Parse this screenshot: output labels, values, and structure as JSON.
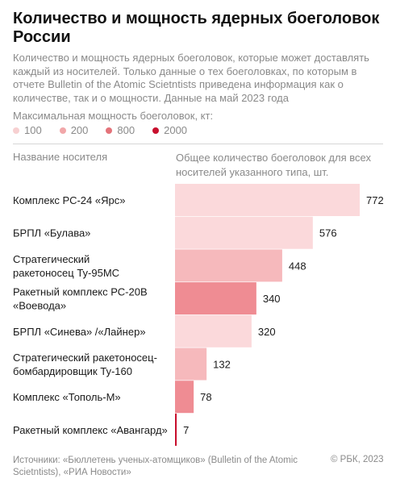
{
  "header": {
    "title": "Количество и мощность ядерных боеголовок России",
    "subtitle": "Количество и мощность ядерных боеголовок, которые может доставлять каждый из носителей. Только данные о тех боеголовках, по которым в отчете Bulletin of the Atomic Scietntists приведена информация как о количестве, так и о мощности. Данные на май 2023 года"
  },
  "legend": {
    "title": "Максимальная мощность боеголовок, кт:",
    "items": [
      {
        "label": "100",
        "color": "#f7d0d1"
      },
      {
        "label": "200",
        "color": "#f1a7a9"
      },
      {
        "label": "800",
        "color": "#e4737a"
      },
      {
        "label": "2000",
        "color": "#c8102e"
      }
    ]
  },
  "columns": {
    "left": "Название носителя",
    "right": "Общее количество боеголовок для всех носителей указанного типа, шт."
  },
  "chart_data": {
    "type": "bar",
    "orientation": "horizontal",
    "categories": [
      [
        "Комплекс РС-24 «Ярс»"
      ],
      [
        "БРПЛ «Булава»"
      ],
      [
        "Стратегический",
        "ракетоносец Ту-95МС"
      ],
      [
        "Ракетный комплекс РС-20В",
        "«Воевода»"
      ],
      [
        "БРПЛ «Синева» /«Лайнер»"
      ],
      [
        "Стратегический ракетоносец-",
        "бомбардировщик Ту-160"
      ],
      [
        "Комплекс «Тополь-М»"
      ],
      [
        "Ракетный комплекс «Авангард»"
      ]
    ],
    "values": [
      772,
      576,
      448,
      340,
      320,
      132,
      78,
      7
    ],
    "value_labels": [
      "772",
      "576",
      "448",
      "340",
      "320",
      "132",
      "78",
      "7"
    ],
    "max_yield_kt": [
      100,
      100,
      200,
      800,
      100,
      200,
      800,
      2000
    ],
    "colors": [
      "#fbd9db",
      "#fbd9db",
      "#f6b9bc",
      "#ef8c93",
      "#fbd9db",
      "#f6b9bc",
      "#ef8c93",
      "#c8102e"
    ],
    "xlim": [
      0,
      772
    ]
  },
  "footer": {
    "sources": "Источники: «Бюллетень ученых-атомщиков» (Bulletin of the Atomic Scietntists), «РИА Новости»",
    "copyright": "© РБК, 2023"
  }
}
